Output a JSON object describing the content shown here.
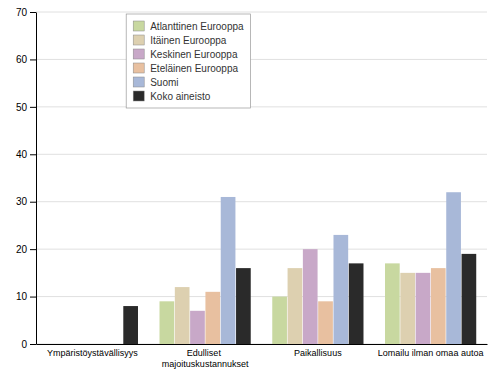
{
  "chart_data": {
    "type": "bar",
    "categories": [
      "Ympäristöystävällisyys",
      "Edulliset majoituskustannukset",
      "Paikallisuus",
      "Lomailu ilman omaa autoa"
    ],
    "series": [
      {
        "name": "Atlanttinen Eurooppa",
        "color": "#c8d8a0",
        "values": [
          0,
          9,
          10,
          17
        ]
      },
      {
        "name": "Itäinen Eurooppa",
        "color": "#ddd0b0",
        "values": [
          0,
          12,
          16,
          15
        ]
      },
      {
        "name": "Keskinen Eurooppa",
        "color": "#c8a8c8",
        "values": [
          0,
          7,
          20,
          15
        ]
      },
      {
        "name": "Eteläinen Eurooppa",
        "color": "#e8c0a0",
        "values": [
          0,
          11,
          9,
          16
        ]
      },
      {
        "name": "Suomi",
        "color": "#a8b8d8",
        "values": [
          0,
          31,
          23,
          32
        ]
      },
      {
        "name": "Koko aineisto",
        "color": "#2a2a2a",
        "values": [
          8,
          16,
          17,
          19
        ]
      }
    ],
    "ylim": [
      0,
      70
    ],
    "yticks": [
      0,
      10,
      20,
      30,
      40,
      50,
      60,
      70
    ],
    "grid": true,
    "legend": "upper left"
  }
}
